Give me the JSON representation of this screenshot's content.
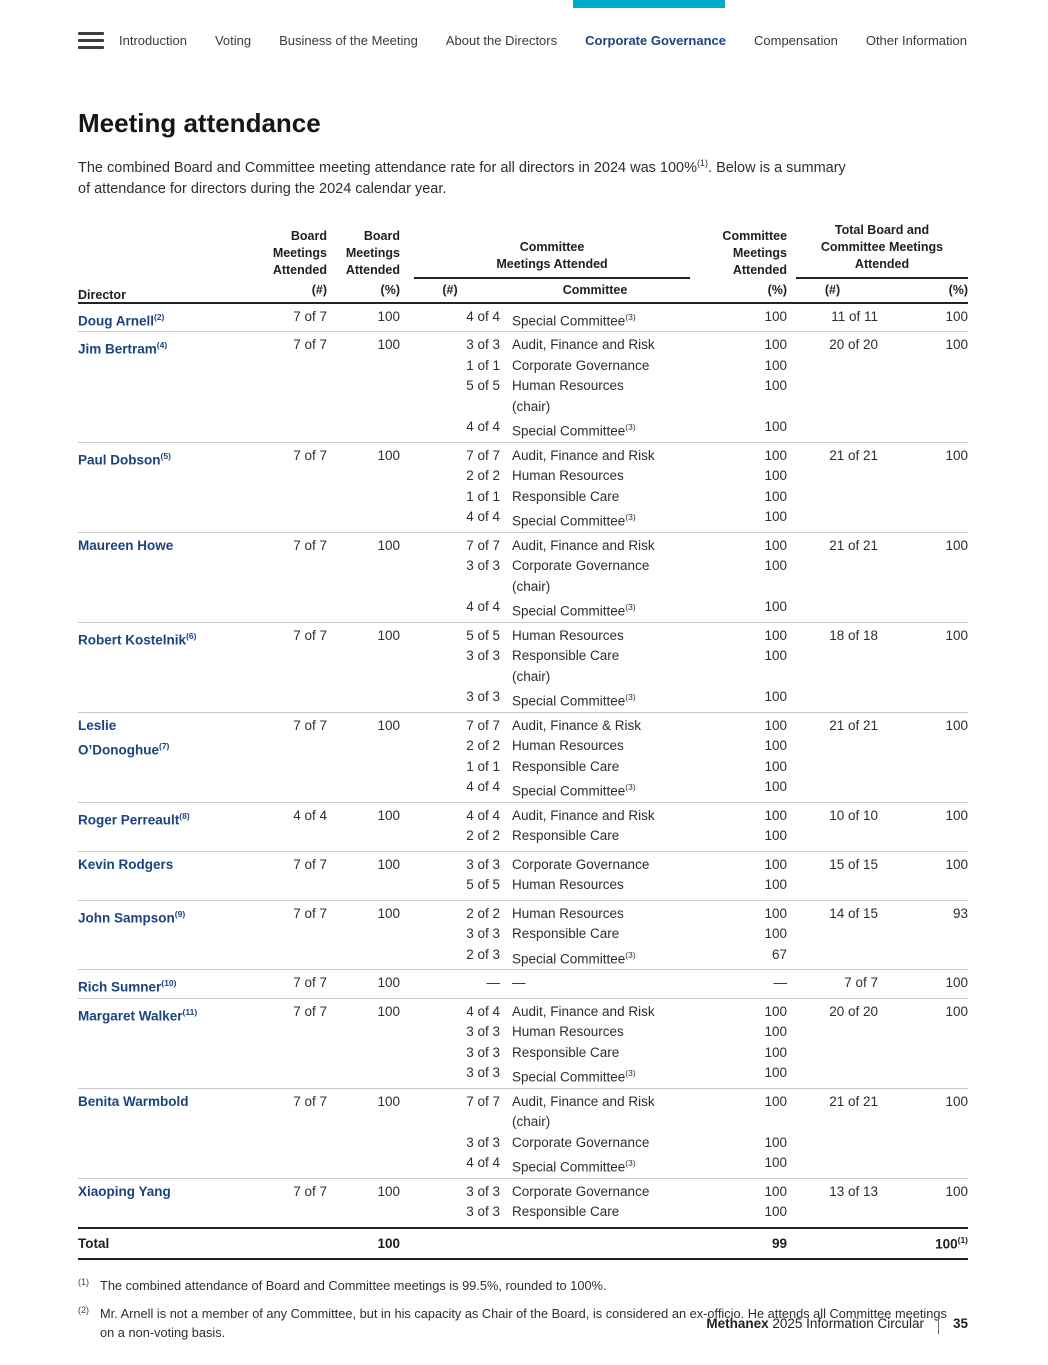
{
  "colors": {
    "accent_cyan": "#00a9ce",
    "navy": "#1c4380"
  },
  "nav": {
    "items": [
      {
        "label": "Introduction",
        "active": false
      },
      {
        "label": "Voting",
        "active": false
      },
      {
        "label": "Business of the Meeting",
        "active": false
      },
      {
        "label": "About the Directors",
        "active": false
      },
      {
        "label": "Corporate Governance",
        "active": true
      },
      {
        "label": "Compensation",
        "active": false
      },
      {
        "label": "Other Information",
        "active": false
      }
    ]
  },
  "main": {
    "title": "Meeting attendance",
    "intro_pre": "The combined Board and Committee meeting attendance rate for all directors in 2024 was 100%",
    "intro_sup": "(1)",
    "intro_mid": ". Below is a summary",
    "intro_line2": "of attendance for directors during the 2024 calendar year."
  },
  "table": {
    "headers": {
      "director": "Director",
      "board_num_title": "Board\nMeetings\nAttended",
      "board_num_sub": "(#)",
      "board_pct_title": "Board\nMeetings\nAttended",
      "board_pct_sub": "(%)",
      "committee_group_title": "Committee\nMeetings Attended",
      "committee_num_sub": "(#)",
      "committee_name_sub": "Committee",
      "committee_pct_title": "Committee\nMeetings\nAttended",
      "committee_pct_sub": "(%)",
      "total_group_title": "Total Board and\nCommittee Meetings\nAttended",
      "total_num_sub": "(#)",
      "total_pct_sub": "(%)"
    },
    "rows": [
      {
        "name_lines": [
          "Doug Arnell"
        ],
        "sup": "(2)",
        "board_num": "7 of 7",
        "board_pct": "100",
        "committees": [
          {
            "num": "4 of 4",
            "name": "Special Committee",
            "sup": "(3)",
            "pct": "100"
          }
        ],
        "total_num": "11 of 11",
        "total_pct": "100"
      },
      {
        "name_lines": [
          "Jim Bertram"
        ],
        "sup": "(4)",
        "board_num": "7 of 7",
        "board_pct": "100",
        "committees": [
          {
            "num": "3 of 3",
            "name": "Audit, Finance and Risk",
            "pct": "100"
          },
          {
            "num": "1 of 1",
            "name": "Corporate Governance",
            "pct": "100"
          },
          {
            "num": "5 of 5",
            "name": "Human Resources",
            "chair": true,
            "pct": "100"
          },
          {
            "num": "4 of 4",
            "name": "Special Committee",
            "sup": "(3)",
            "pct": "100"
          }
        ],
        "total_num": "20 of 20",
        "total_pct": "100"
      },
      {
        "name_lines": [
          "Paul Dobson"
        ],
        "sup": "(5)",
        "board_num": "7 of 7",
        "board_pct": "100",
        "committees": [
          {
            "num": "7 of 7",
            "name": "Audit, Finance and Risk",
            "pct": "100"
          },
          {
            "num": "2 of 2",
            "name": "Human Resources",
            "pct": "100"
          },
          {
            "num": "1 of 1",
            "name": "Responsible Care",
            "pct": "100"
          },
          {
            "num": "4 of 4",
            "name": "Special Committee",
            "sup": "(3)",
            "pct": "100"
          }
        ],
        "total_num": "21 of 21",
        "total_pct": "100"
      },
      {
        "name_lines": [
          "Maureen Howe"
        ],
        "board_num": "7 of 7",
        "board_pct": "100",
        "committees": [
          {
            "num": "7 of 7",
            "name": "Audit, Finance and Risk",
            "pct": "100"
          },
          {
            "num": "3 of 3",
            "name": "Corporate Governance",
            "chair": true,
            "pct": "100"
          },
          {
            "num": "4 of 4",
            "name": "Special Committee",
            "sup": "(3)",
            "pct": "100"
          }
        ],
        "total_num": "21 of 21",
        "total_pct": "100"
      },
      {
        "name_lines": [
          "Robert Kostelnik"
        ],
        "sup": "(6)",
        "board_num": "7 of 7",
        "board_pct": "100",
        "committees": [
          {
            "num": "5 of 5",
            "name": "Human Resources",
            "pct": "100"
          },
          {
            "num": "3 of 3",
            "name": "Responsible Care",
            "chair": true,
            "pct": "100"
          },
          {
            "num": "3 of 3",
            "name": "Special Committee",
            "sup": "(3)",
            "pct": "100"
          }
        ],
        "total_num": "18 of 18",
        "total_pct": "100"
      },
      {
        "name_lines": [
          "Leslie",
          "O’Donoghue"
        ],
        "sup": "(7)",
        "board_num": "7 of 7",
        "board_pct": "100",
        "committees": [
          {
            "num": "7 of 7",
            "name": "Audit, Finance & Risk",
            "pct": "100"
          },
          {
            "num": "2 of 2",
            "name": "Human Resources",
            "pct": "100"
          },
          {
            "num": "1 of 1",
            "name": "Responsible Care",
            "pct": "100"
          },
          {
            "num": "4 of 4",
            "name": "Special Committee",
            "sup": "(3)",
            "pct": "100"
          }
        ],
        "total_num": "21 of 21",
        "total_pct": "100"
      },
      {
        "name_lines": [
          "Roger Perreault"
        ],
        "sup": "(8)",
        "board_num": "4 of 4",
        "board_pct": "100",
        "committees": [
          {
            "num": "4 of 4",
            "name": "Audit, Finance and Risk",
            "pct": "100"
          },
          {
            "num": "2 of 2",
            "name": "Responsible Care",
            "pct": "100"
          }
        ],
        "total_num": "10 of 10",
        "total_pct": "100"
      },
      {
        "name_lines": [
          "Kevin Rodgers"
        ],
        "board_num": "7 of 7",
        "board_pct": "100",
        "committees": [
          {
            "num": "3 of 3",
            "name": "Corporate Governance",
            "pct": "100"
          },
          {
            "num": "5 of 5",
            "name": "Human Resources",
            "pct": "100"
          }
        ],
        "total_num": "15 of 15",
        "total_pct": "100"
      },
      {
        "name_lines": [
          "John Sampson"
        ],
        "sup": "(9)",
        "board_num": "7 of 7",
        "board_pct": "100",
        "committees": [
          {
            "num": "2 of 2",
            "name": "Human Resources",
            "pct": "100"
          },
          {
            "num": "3 of 3",
            "name": "Responsible Care",
            "pct": "100"
          },
          {
            "num": "2 of 3",
            "name": "Special Committee",
            "sup": "(3)",
            "pct": "67"
          }
        ],
        "total_num": "14 of 15",
        "total_pct": "93"
      },
      {
        "name_lines": [
          "Rich Sumner"
        ],
        "sup": "(10)",
        "board_num": "7 of 7",
        "board_pct": "100",
        "committees": [
          {
            "num": "—",
            "name": "—",
            "pct": "—"
          }
        ],
        "total_num": "7 of 7",
        "total_pct": "100"
      },
      {
        "name_lines": [
          "Margaret Walker"
        ],
        "sup": "(11)",
        "board_num": "7 of 7",
        "board_pct": "100",
        "committees": [
          {
            "num": "4 of 4",
            "name": "Audit, Finance and Risk",
            "pct": "100"
          },
          {
            "num": "3 of 3",
            "name": "Human Resources",
            "pct": "100"
          },
          {
            "num": "3 of 3",
            "name": "Responsible Care",
            "pct": "100"
          },
          {
            "num": "3 of 3",
            "name": "Special Committee",
            "sup": "(3)",
            "pct": "100"
          }
        ],
        "total_num": "20 of 20",
        "total_pct": "100"
      },
      {
        "name_lines": [
          "Benita Warmbold"
        ],
        "board_num": "7 of 7",
        "board_pct": "100",
        "committees": [
          {
            "num": "7 of 7",
            "name": "Audit, Finance and Risk",
            "chair": true,
            "pct": "100"
          },
          {
            "num": "3 of 3",
            "name": "Corporate Governance",
            "pct": "100"
          },
          {
            "num": "4 of 4",
            "name": "Special Committee",
            "sup": "(3)",
            "pct": "100"
          }
        ],
        "total_num": "21 of 21",
        "total_pct": "100"
      },
      {
        "name_lines": [
          "Xiaoping Yang"
        ],
        "board_num": "7 of 7",
        "board_pct": "100",
        "committees": [
          {
            "num": "3 of 3",
            "name": "Corporate Governance",
            "pct": "100"
          },
          {
            "num": "3 of 3",
            "name": "Responsible Care",
            "pct": "100"
          }
        ],
        "total_num": "13 of 13",
        "total_pct": "100"
      }
    ],
    "total_row": {
      "label": "Total",
      "board_pct": "100",
      "committee_pct": "99",
      "total_pct": "100",
      "total_pct_sup": "(1)"
    }
  },
  "footnotes": [
    {
      "marker": "(1)",
      "text": "The combined attendance of Board and Committee meetings is 99.5%, rounded to 100%."
    },
    {
      "marker": "(2)",
      "text": "Mr. Arnell is not a member of any Committee, but in his capacity as Chair of the Board, is considered an ex-officio. He attends all Committee meetings on a non-voting basis."
    }
  ],
  "footer": {
    "brand": "Methanex",
    "doc_title": "2025 Information Circular",
    "page_number": "35"
  }
}
